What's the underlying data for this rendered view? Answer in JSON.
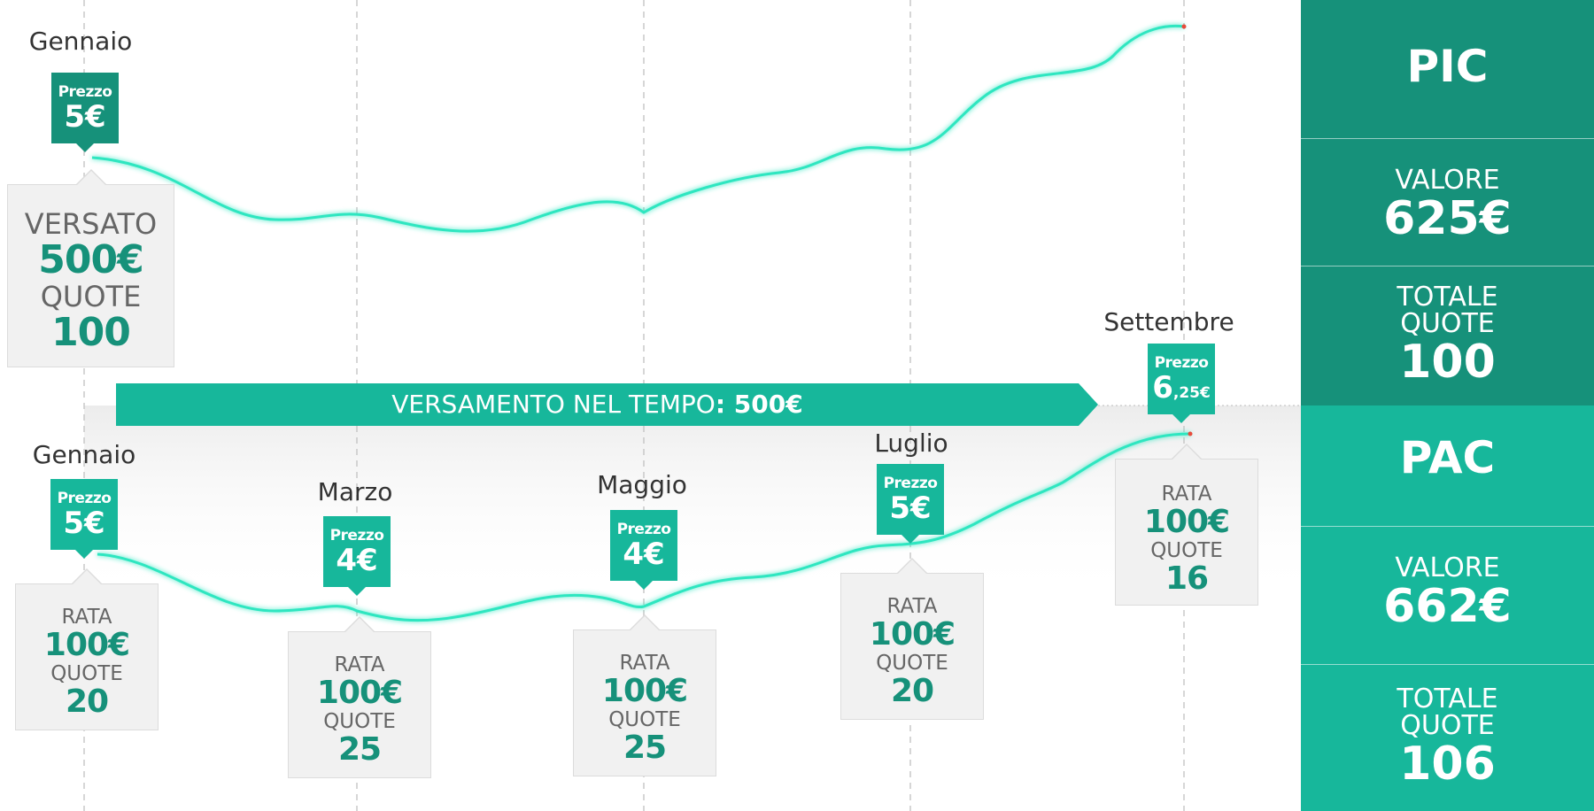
{
  "pic": {
    "month": "Gennaio",
    "price_label": "Prezzo",
    "price": "5€",
    "versato_label": "VERSATO",
    "versato_value": "500€",
    "quote_label": "QUOTE",
    "quote_value": "100",
    "end_month": "Settembre",
    "end_price_label": "Prezzo",
    "end_price_main": "6",
    "end_price_small": ",25€"
  },
  "band": {
    "text": "VERSAMENTO  NEL TEMPO",
    "amount": ": 500€"
  },
  "pac": {
    "steps": [
      {
        "month": "Gennaio",
        "price_label": "Prezzo",
        "price": "5€",
        "rata_label": "RATA",
        "rata": "100€",
        "quote_label": "QUOTE",
        "quote": "20"
      },
      {
        "month": "Marzo",
        "price_label": "Prezzo",
        "price": "4€",
        "rata_label": "RATA",
        "rata": "100€",
        "quote_label": "QUOTE",
        "quote": "25"
      },
      {
        "month": "Maggio",
        "price_label": "Prezzo",
        "price": "4€",
        "rata_label": "RATA",
        "rata": "100€",
        "quote_label": "QUOTE",
        "quote": "25"
      },
      {
        "month": "Luglio",
        "price_label": "Prezzo",
        "price": "5€",
        "rata_label": "RATA",
        "rata": "100€",
        "quote_label": "QUOTE",
        "quote": "20"
      },
      {
        "month": "",
        "price_label": "",
        "price": "",
        "rata_label": "RATA",
        "rata": "100€",
        "quote_label": "QUOTE",
        "quote": "16"
      }
    ]
  },
  "summary": {
    "pic": {
      "title": "PIC",
      "valore_label": "VALORE",
      "valore": "625€",
      "totale_label_1": "TOTALE",
      "totale_label_2": "QUOTE",
      "totale": "100"
    },
    "pac": {
      "title": "PAC",
      "valore_label": "VALORE",
      "valore": "662€",
      "totale_label_1": "TOTALE",
      "totale_label_2": "QUOTE",
      "totale": "106"
    }
  },
  "colors": {
    "dark_green": "#16917a",
    "light_green": "#17b79b",
    "curve": "#2ee6c0",
    "box": "#f1f1f1"
  }
}
